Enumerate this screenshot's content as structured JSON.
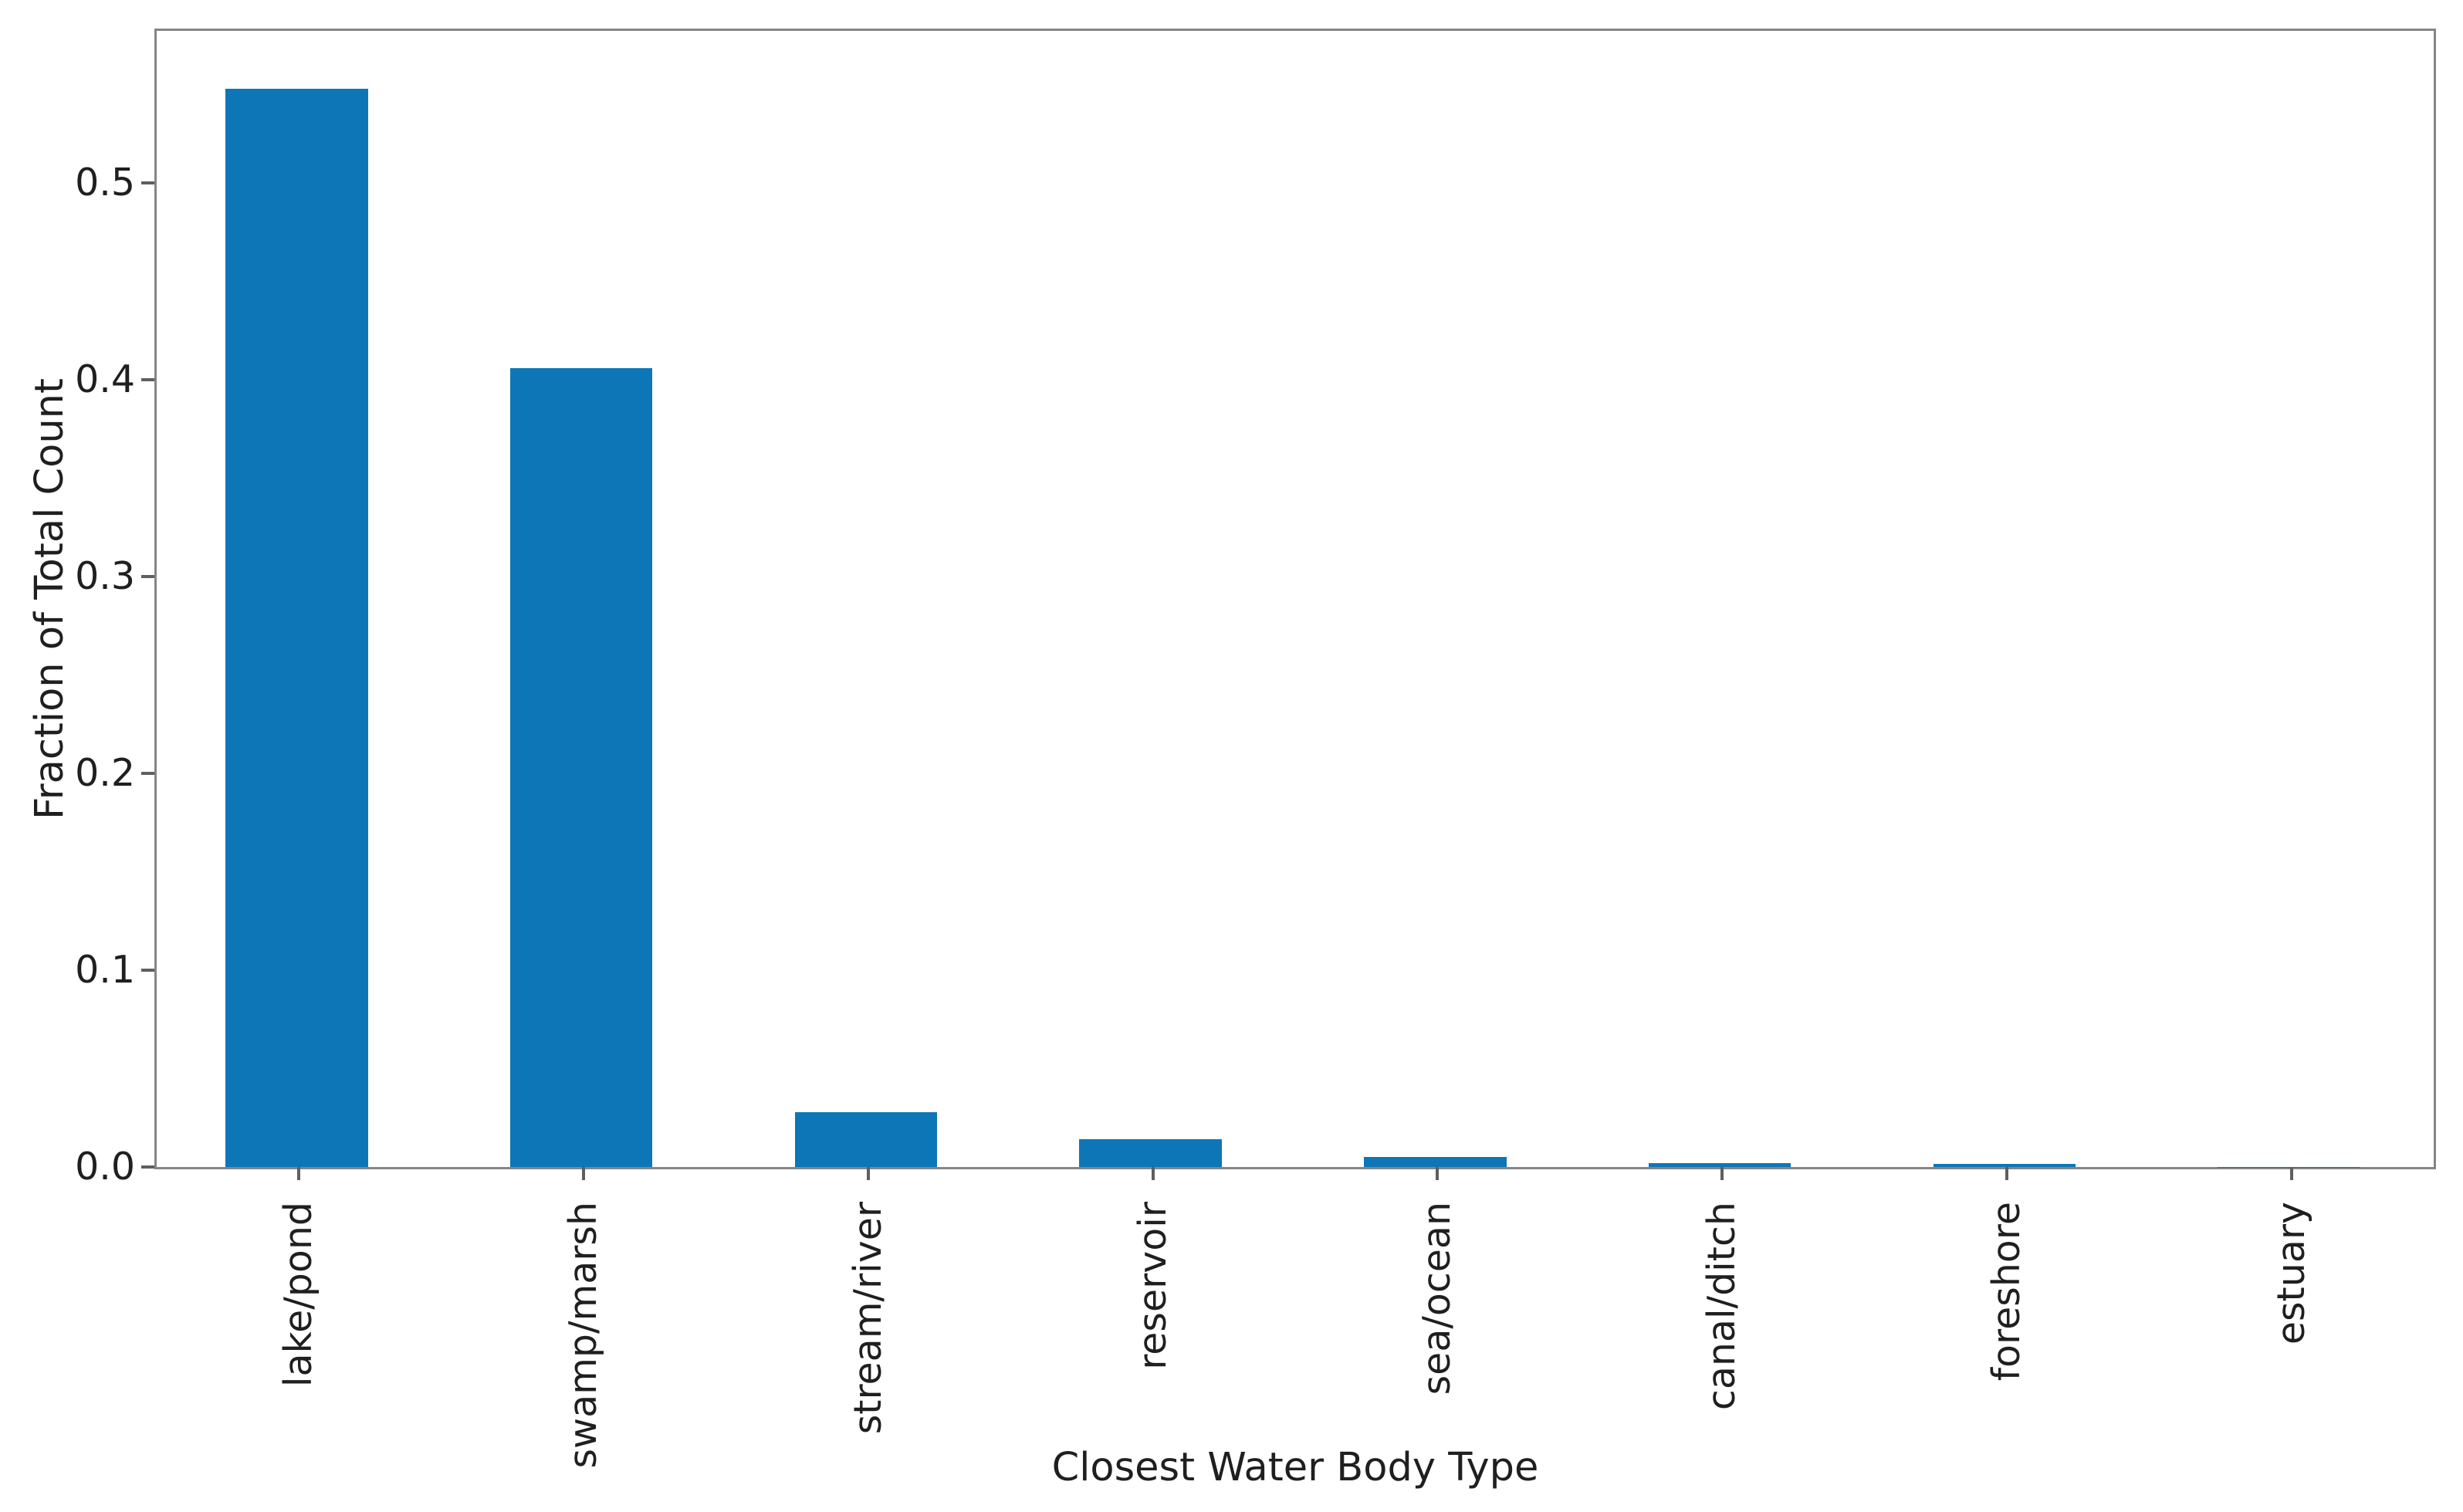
{
  "chart_data": {
    "type": "bar",
    "title": "",
    "xlabel": "Closest Water Body Type",
    "ylabel": "Fraction of Total Count",
    "categories": [
      "lake/pond",
      "swamp/marsh",
      "stream/river",
      "reservoir",
      "sea/ocean",
      "canal/ditch",
      "foreshore",
      "estuary"
    ],
    "values": [
      0.548,
      0.406,
      0.028,
      0.014,
      0.005,
      0.002,
      0.0015,
      0.0002
    ],
    "yticks": [
      0.0,
      0.1,
      0.2,
      0.3,
      0.4,
      0.5
    ],
    "ytick_labels": [
      "0.0",
      "0.1",
      "0.2",
      "0.3",
      "0.4",
      "0.5"
    ],
    "ylim": [
      0,
      0.5773
    ],
    "x_tick_rotation": 90,
    "grid": false,
    "legend_position": "none",
    "bar_color": "#0d76b7",
    "spine_color": "#858585",
    "tick_color": "#5f5f5f",
    "text_color": "#1f1f1f",
    "background_color": "#ffffff",
    "bar_width_fraction": 0.5
  }
}
